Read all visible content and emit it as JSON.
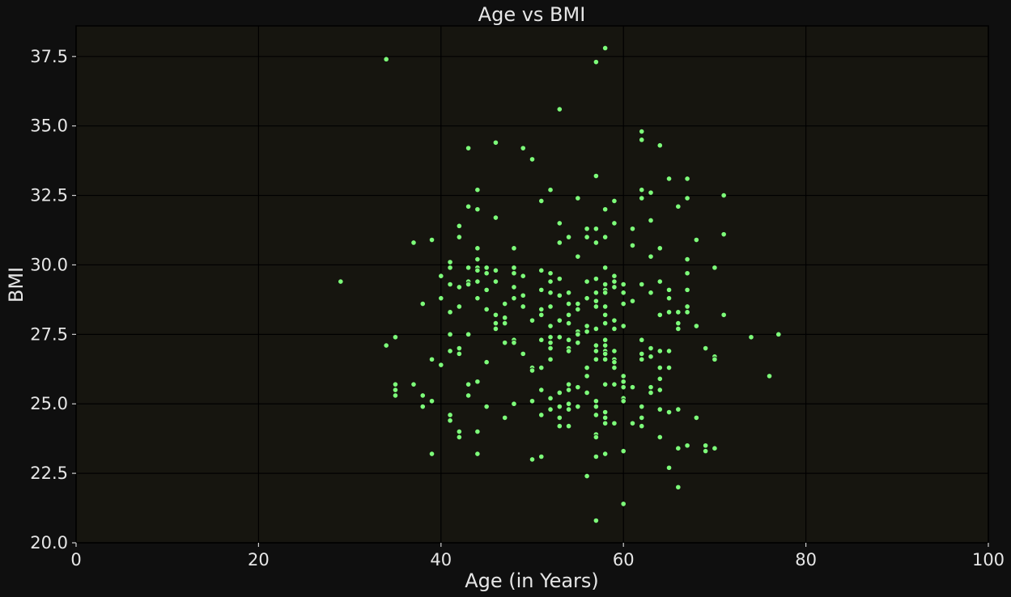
{
  "colors": {
    "point": "#7dff7a",
    "background": "#0f0f0f",
    "plot_bg": "#16150f",
    "text": "#e6e6e6"
  },
  "chart_data": {
    "type": "scatter",
    "title": "Age vs BMI",
    "xlabel": "Age (in Years)",
    "ylabel": "BMI",
    "xlim": [
      0,
      100
    ],
    "ylim": [
      20,
      38.6
    ],
    "xticks": [
      0,
      20,
      40,
      60,
      80,
      100
    ],
    "xtick_labels": [
      "0",
      "20",
      "40",
      "60",
      "80",
      "100"
    ],
    "yticks": [
      20,
      22.5,
      25,
      27.5,
      30,
      32.5,
      35,
      37.5
    ],
    "ytick_labels": [
      "20.0",
      "22.5",
      "25.0",
      "27.5",
      "30.0",
      "32.5",
      "35.0",
      "37.5"
    ],
    "grid": true,
    "points": [
      [
        29,
        29.4
      ],
      [
        34,
        37.4
      ],
      [
        34,
        27.1
      ],
      [
        35,
        27.4
      ],
      [
        35,
        25.7
      ],
      [
        35,
        25.5
      ],
      [
        35,
        25.3
      ],
      [
        37,
        30.8
      ],
      [
        37,
        25.7
      ],
      [
        38,
        28.6
      ],
      [
        38,
        25.3
      ],
      [
        38,
        24.9
      ],
      [
        39,
        30.9
      ],
      [
        39,
        26.6
      ],
      [
        39,
        25.1
      ],
      [
        39,
        23.2
      ],
      [
        40,
        29.6
      ],
      [
        40,
        28.8
      ],
      [
        40,
        26.4
      ],
      [
        41,
        30.1
      ],
      [
        41,
        29.9
      ],
      [
        41,
        29.3
      ],
      [
        41,
        28.3
      ],
      [
        41,
        27.5
      ],
      [
        41,
        26.9
      ],
      [
        41,
        24.6
      ],
      [
        41,
        24.4
      ],
      [
        42,
        31.4
      ],
      [
        42,
        31.0
      ],
      [
        42,
        29.2
      ],
      [
        42,
        28.5
      ],
      [
        42,
        27.0
      ],
      [
        42,
        26.8
      ],
      [
        42,
        24.0
      ],
      [
        42,
        23.8
      ],
      [
        43,
        34.2
      ],
      [
        43,
        32.1
      ],
      [
        43,
        29.9
      ],
      [
        43,
        29.4
      ],
      [
        43,
        29.3
      ],
      [
        43,
        27.5
      ],
      [
        43,
        25.7
      ],
      [
        43,
        25.3
      ],
      [
        44,
        32.7
      ],
      [
        44,
        32.0
      ],
      [
        44,
        30.6
      ],
      [
        44,
        30.2
      ],
      [
        44,
        29.9
      ],
      [
        44,
        29.8
      ],
      [
        44,
        29.4
      ],
      [
        44,
        28.8
      ],
      [
        44,
        25.8
      ],
      [
        44,
        24.0
      ],
      [
        44,
        23.2
      ],
      [
        45,
        29.9
      ],
      [
        45,
        29.7
      ],
      [
        45,
        29.1
      ],
      [
        45,
        28.4
      ],
      [
        45,
        26.5
      ],
      [
        45,
        24.9
      ],
      [
        46,
        34.4
      ],
      [
        46,
        31.7
      ],
      [
        46,
        29.8
      ],
      [
        46,
        29.4
      ],
      [
        46,
        28.2
      ],
      [
        46,
        27.9
      ],
      [
        46,
        27.7
      ],
      [
        47,
        28.6
      ],
      [
        47,
        28.1
      ],
      [
        47,
        27.9
      ],
      [
        47,
        27.2
      ],
      [
        47,
        24.5
      ],
      [
        48,
        30.6
      ],
      [
        48,
        29.9
      ],
      [
        48,
        29.7
      ],
      [
        48,
        29.2
      ],
      [
        48,
        28.8
      ],
      [
        48,
        27.3
      ],
      [
        48,
        27.2
      ],
      [
        48,
        25.0
      ],
      [
        49,
        34.2
      ],
      [
        49,
        29.6
      ],
      [
        49,
        28.9
      ],
      [
        49,
        28.5
      ],
      [
        49,
        26.8
      ],
      [
        50,
        33.8
      ],
      [
        50,
        28.0
      ],
      [
        50,
        26.3
      ],
      [
        50,
        26.2
      ],
      [
        50,
        25.1
      ],
      [
        50,
        23.0
      ],
      [
        51,
        32.3
      ],
      [
        51,
        29.8
      ],
      [
        51,
        29.1
      ],
      [
        51,
        28.4
      ],
      [
        51,
        28.2
      ],
      [
        51,
        27.3
      ],
      [
        51,
        26.3
      ],
      [
        51,
        25.5
      ],
      [
        51,
        24.6
      ],
      [
        51,
        23.1
      ],
      [
        52,
        32.7
      ],
      [
        52,
        29.7
      ],
      [
        52,
        29.4
      ],
      [
        52,
        29.0
      ],
      [
        52,
        28.5
      ],
      [
        52,
        27.8
      ],
      [
        52,
        27.4
      ],
      [
        52,
        27.2
      ],
      [
        52,
        27.0
      ],
      [
        52,
        26.6
      ],
      [
        52,
        25.2
      ],
      [
        52,
        24.8
      ],
      [
        53,
        35.6
      ],
      [
        53,
        31.5
      ],
      [
        53,
        30.8
      ],
      [
        53,
        29.5
      ],
      [
        53,
        28.9
      ],
      [
        53,
        28.0
      ],
      [
        53,
        27.4
      ],
      [
        53,
        25.4
      ],
      [
        53,
        24.9
      ],
      [
        53,
        24.5
      ],
      [
        53,
        24.2
      ],
      [
        54,
        31.0
      ],
      [
        54,
        29.0
      ],
      [
        54,
        28.6
      ],
      [
        54,
        28.2
      ],
      [
        54,
        27.9
      ],
      [
        54,
        27.3
      ],
      [
        54,
        27.0
      ],
      [
        54,
        26.9
      ],
      [
        54,
        25.7
      ],
      [
        54,
        25.5
      ],
      [
        54,
        25.0
      ],
      [
        54,
        24.8
      ],
      [
        54,
        24.2
      ],
      [
        55,
        32.4
      ],
      [
        55,
        30.3
      ],
      [
        55,
        28.6
      ],
      [
        55,
        28.4
      ],
      [
        55,
        27.6
      ],
      [
        55,
        27.5
      ],
      [
        55,
        27.2
      ],
      [
        55,
        25.6
      ],
      [
        55,
        24.9
      ],
      [
        56,
        31.3
      ],
      [
        56,
        31.0
      ],
      [
        56,
        29.4
      ],
      [
        56,
        28.8
      ],
      [
        56,
        27.8
      ],
      [
        56,
        27.6
      ],
      [
        56,
        26.3
      ],
      [
        56,
        26.0
      ],
      [
        56,
        25.4
      ],
      [
        56,
        22.4
      ],
      [
        57,
        33.2
      ],
      [
        57,
        31.3
      ],
      [
        57,
        30.8
      ],
      [
        57,
        29.5
      ],
      [
        57,
        29.0
      ],
      [
        57,
        28.7
      ],
      [
        57,
        28.5
      ],
      [
        57,
        27.7
      ],
      [
        57,
        27.1
      ],
      [
        57,
        26.9
      ],
      [
        57,
        26.6
      ],
      [
        57,
        25.1
      ],
      [
        57,
        24.9
      ],
      [
        57,
        24.6
      ],
      [
        57,
        23.9
      ],
      [
        57,
        23.8
      ],
      [
        57,
        23.1
      ],
      [
        57,
        37.3
      ],
      [
        57,
        20.8
      ],
      [
        58,
        37.8
      ],
      [
        58,
        32.0
      ],
      [
        58,
        31.0
      ],
      [
        58,
        29.9
      ],
      [
        58,
        29.3
      ],
      [
        58,
        29.1
      ],
      [
        58,
        29.0
      ],
      [
        58,
        28.5
      ],
      [
        58,
        28.2
      ],
      [
        58,
        27.9
      ],
      [
        58,
        27.3
      ],
      [
        58,
        27.1
      ],
      [
        58,
        26.9
      ],
      [
        58,
        26.8
      ],
      [
        58,
        26.6
      ],
      [
        58,
        25.7
      ],
      [
        58,
        24.7
      ],
      [
        58,
        24.5
      ],
      [
        58,
        24.3
      ],
      [
        58,
        23.2
      ],
      [
        59,
        32.3
      ],
      [
        59,
        31.5
      ],
      [
        59,
        29.6
      ],
      [
        59,
        29.4
      ],
      [
        59,
        29.2
      ],
      [
        59,
        28.0
      ],
      [
        59,
        27.7
      ],
      [
        59,
        26.9
      ],
      [
        59,
        26.6
      ],
      [
        59,
        26.5
      ],
      [
        59,
        26.3
      ],
      [
        59,
        25.7
      ],
      [
        59,
        24.3
      ],
      [
        60,
        29.3
      ],
      [
        60,
        29.0
      ],
      [
        60,
        28.6
      ],
      [
        60,
        27.8
      ],
      [
        60,
        26.0
      ],
      [
        60,
        25.8
      ],
      [
        60,
        25.6
      ],
      [
        60,
        25.2
      ],
      [
        60,
        25.1
      ],
      [
        60,
        23.3
      ],
      [
        60,
        21.4
      ],
      [
        61,
        31.3
      ],
      [
        61,
        30.7
      ],
      [
        61,
        28.7
      ],
      [
        61,
        25.6
      ],
      [
        61,
        24.3
      ],
      [
        62,
        34.8
      ],
      [
        62,
        34.5
      ],
      [
        62,
        32.7
      ],
      [
        62,
        32.4
      ],
      [
        62,
        29.3
      ],
      [
        62,
        27.3
      ],
      [
        62,
        26.8
      ],
      [
        62,
        26.6
      ],
      [
        62,
        24.9
      ],
      [
        62,
        24.5
      ],
      [
        62,
        24.2
      ],
      [
        63,
        32.6
      ],
      [
        63,
        31.6
      ],
      [
        63,
        30.3
      ],
      [
        63,
        29.0
      ],
      [
        63,
        27.0
      ],
      [
        63,
        26.7
      ],
      [
        63,
        25.6
      ],
      [
        63,
        25.4
      ],
      [
        64,
        34.3
      ],
      [
        64,
        30.6
      ],
      [
        64,
        29.4
      ],
      [
        64,
        28.2
      ],
      [
        64,
        26.9
      ],
      [
        64,
        26.3
      ],
      [
        64,
        25.9
      ],
      [
        64,
        25.5
      ],
      [
        64,
        24.8
      ],
      [
        64,
        23.8
      ],
      [
        65,
        33.1
      ],
      [
        65,
        29.1
      ],
      [
        65,
        28.8
      ],
      [
        65,
        28.3
      ],
      [
        65,
        26.9
      ],
      [
        65,
        26.3
      ],
      [
        65,
        24.7
      ],
      [
        65,
        22.7
      ],
      [
        66,
        32.1
      ],
      [
        66,
        28.3
      ],
      [
        66,
        27.9
      ],
      [
        66,
        27.7
      ],
      [
        66,
        24.8
      ],
      [
        66,
        23.4
      ],
      [
        66,
        22.0
      ],
      [
        67,
        33.1
      ],
      [
        67,
        32.4
      ],
      [
        67,
        30.2
      ],
      [
        67,
        29.7
      ],
      [
        67,
        29.1
      ],
      [
        67,
        28.5
      ],
      [
        67,
        28.3
      ],
      [
        67,
        23.5
      ],
      [
        68,
        30.9
      ],
      [
        68,
        27.8
      ],
      [
        68,
        27.8
      ],
      [
        68,
        24.5
      ],
      [
        69,
        27.0
      ],
      [
        69,
        23.5
      ],
      [
        69,
        23.3
      ],
      [
        70,
        29.9
      ],
      [
        70,
        26.7
      ],
      [
        70,
        26.6
      ],
      [
        70,
        23.4
      ],
      [
        71,
        32.5
      ],
      [
        71,
        31.1
      ],
      [
        71,
        28.2
      ],
      [
        74,
        27.4
      ],
      [
        76,
        26.0
      ],
      [
        77,
        27.5
      ]
    ]
  }
}
